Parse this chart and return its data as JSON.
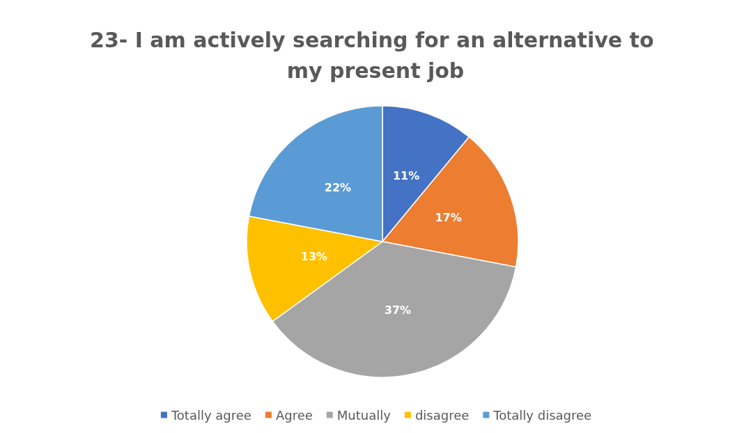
{
  "chart_data": {
    "type": "pie",
    "title": "23- I am actively searching for an alternative to my present job",
    "categories": [
      "Totally agree",
      "Agree",
      "Mutually",
      "disagree",
      "Totally disagree"
    ],
    "values": [
      11,
      17,
      37,
      13,
      22
    ],
    "colors": [
      "#4472c4",
      "#ed7d31",
      "#a5a5a5",
      "#ffc000",
      "#5b9bd5"
    ],
    "value_labels": [
      "11%",
      "17%",
      "37%",
      "13%",
      "22%"
    ],
    "legend": "bottom"
  }
}
